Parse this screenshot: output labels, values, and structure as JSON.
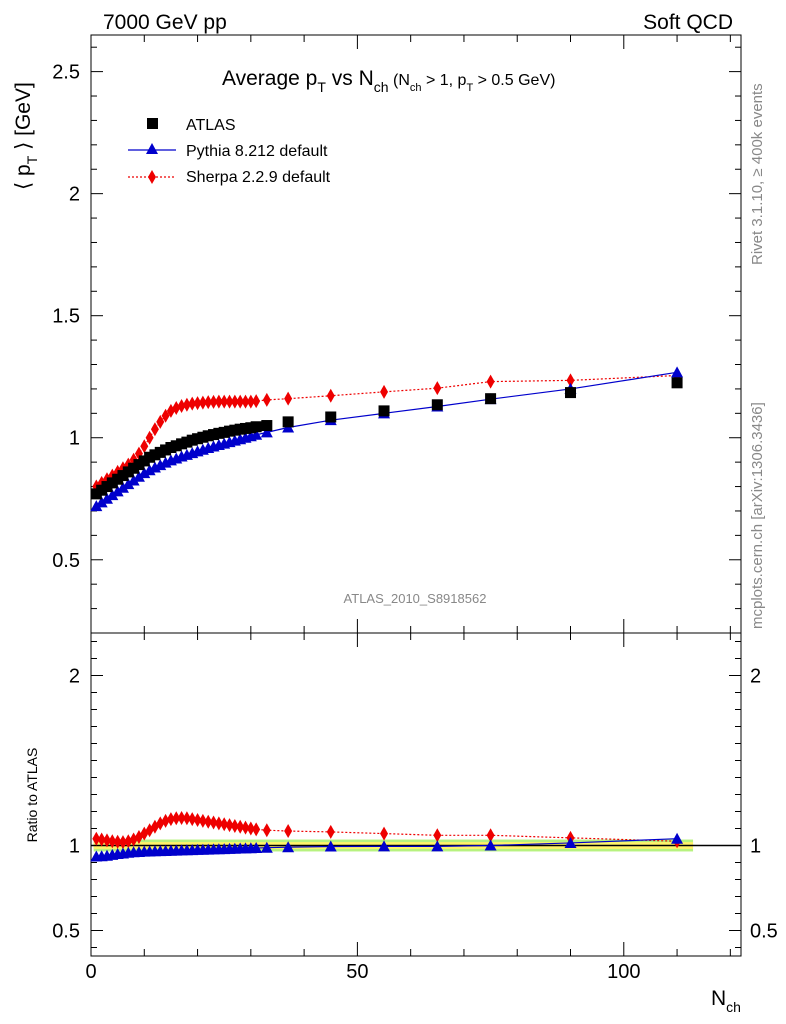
{
  "header": {
    "left": "7000 GeV pp",
    "right": "Soft QCD"
  },
  "side": {
    "rivet": "Rivet 3.1.10, ≥ 400k events",
    "mcplots": "mcplots.cern.ch [arXiv:1306.3436]"
  },
  "watermark": "ATLAS_2010_S8918562",
  "colors": {
    "atlas": "#000000",
    "pythia": "#0000cc",
    "sherpa": "#ee0000",
    "band_inner": "#fff36a",
    "band_outer": "#b7f27f"
  },
  "chart_data": [
    {
      "panel": "main",
      "type": "scatter",
      "title": "Average p_T vs N_ch (N_ch > 1, p_T > 0.5 GeV)",
      "title_parts": {
        "main": "Average p",
        "sub1": "T",
        "vs": " vs N",
        "sub2": "ch",
        "cond_open": " (N",
        "cond_sub1": "ch",
        "cond_mid": " > 1, p",
        "cond_sub2": "T",
        "cond_close": " > 0.5 GeV)"
      },
      "ylabel_parts": {
        "open": "⟨ p",
        "sub": "T",
        "close": " ⟩  [GeV]"
      },
      "xlim": [
        0,
        122
      ],
      "ylim": [
        0.2,
        2.65
      ],
      "yticks": [
        "0.5",
        "1",
        "1.5",
        "2",
        "2.5"
      ],
      "ytick_values": [
        0.5,
        1,
        1.5,
        2,
        2.5
      ],
      "legend_placement": "top-left",
      "series": [
        {
          "name": "ATLAS",
          "marker": "square",
          "x": [
            1,
            2,
            3,
            4,
            5,
            6,
            7,
            8,
            9,
            10,
            11,
            12,
            13,
            14,
            15,
            16,
            17,
            18,
            19,
            20,
            21,
            22,
            23,
            24,
            25,
            26,
            27,
            28,
            29,
            30,
            31,
            33,
            37,
            45,
            55,
            65,
            75,
            90,
            110
          ],
          "y": [
            0.77,
            0.785,
            0.8,
            0.815,
            0.83,
            0.845,
            0.86,
            0.875,
            0.89,
            0.905,
            0.92,
            0.93,
            0.94,
            0.95,
            0.96,
            0.967,
            0.975,
            0.982,
            0.99,
            0.996,
            1.002,
            1.008,
            1.013,
            1.018,
            1.022,
            1.027,
            1.031,
            1.035,
            1.038,
            1.041,
            1.045,
            1.05,
            1.065,
            1.085,
            1.11,
            1.135,
            1.16,
            1.185,
            1.225
          ]
        },
        {
          "name": "Pythia 8.212 default",
          "marker": "triangle",
          "line": "solid",
          "x": [
            1,
            2,
            3,
            4,
            5,
            6,
            7,
            8,
            9,
            10,
            11,
            12,
            13,
            14,
            15,
            16,
            17,
            18,
            19,
            20,
            21,
            22,
            23,
            24,
            25,
            26,
            27,
            28,
            29,
            30,
            31,
            33,
            37,
            45,
            55,
            65,
            75,
            90,
            110
          ],
          "y": [
            0.72,
            0.735,
            0.75,
            0.765,
            0.78,
            0.795,
            0.81,
            0.825,
            0.84,
            0.855,
            0.867,
            0.878,
            0.888,
            0.898,
            0.907,
            0.915,
            0.923,
            0.93,
            0.937,
            0.944,
            0.951,
            0.958,
            0.964,
            0.97,
            0.976,
            0.982,
            0.988,
            0.994,
            1.0,
            1.006,
            1.012,
            1.022,
            1.042,
            1.072,
            1.1,
            1.128,
            1.158,
            1.2,
            1.268
          ]
        },
        {
          "name": "Sherpa 2.2.9 default",
          "marker": "diamond",
          "line": "dotted",
          "x": [
            1,
            2,
            3,
            4,
            5,
            6,
            7,
            8,
            9,
            10,
            11,
            12,
            13,
            14,
            15,
            16,
            17,
            18,
            19,
            20,
            21,
            22,
            23,
            24,
            25,
            26,
            27,
            28,
            29,
            30,
            31,
            33,
            37,
            45,
            55,
            65,
            75,
            90,
            110
          ],
          "y": [
            0.8,
            0.815,
            0.83,
            0.845,
            0.86,
            0.875,
            0.89,
            0.91,
            0.935,
            0.965,
            1.0,
            1.035,
            1.065,
            1.09,
            1.11,
            1.122,
            1.13,
            1.135,
            1.14,
            1.142,
            1.144,
            1.146,
            1.147,
            1.148,
            1.148,
            1.148,
            1.148,
            1.148,
            1.148,
            1.148,
            1.15,
            1.155,
            1.16,
            1.172,
            1.188,
            1.203,
            1.23,
            1.235,
            1.255
          ]
        }
      ]
    },
    {
      "panel": "ratio",
      "type": "scatter",
      "ylabel": "Ratio to ATLAS",
      "xlabel_parts": {
        "main": "N",
        "sub": "ch"
      },
      "xlim": [
        0,
        122
      ],
      "ylim": [
        0.35,
        2.25
      ],
      "yticks": [
        "0.5",
        "1",
        "2"
      ],
      "ytick_values": [
        0.5,
        1,
        2
      ],
      "xticks": [
        "0",
        "50",
        "100"
      ],
      "xtick_values": [
        0,
        50,
        100
      ],
      "band": {
        "inner": 0.02,
        "outer": 0.035
      },
      "series": [
        {
          "name": "Pythia 8.212 default",
          "marker": "triangle",
          "line": "solid",
          "x": [
            1,
            2,
            3,
            4,
            5,
            6,
            7,
            8,
            9,
            10,
            11,
            12,
            13,
            14,
            15,
            16,
            17,
            18,
            19,
            20,
            21,
            22,
            23,
            24,
            25,
            26,
            27,
            28,
            29,
            30,
            31,
            33,
            37,
            45,
            55,
            65,
            75,
            90,
            110
          ],
          "y": [
            0.935,
            0.937,
            0.94,
            0.945,
            0.95,
            0.953,
            0.957,
            0.96,
            0.962,
            0.964,
            0.965,
            0.966,
            0.967,
            0.968,
            0.969,
            0.97,
            0.971,
            0.972,
            0.973,
            0.974,
            0.975,
            0.976,
            0.977,
            0.978,
            0.979,
            0.98,
            0.981,
            0.982,
            0.983,
            0.984,
            0.985,
            0.987,
            0.99,
            0.994,
            0.995,
            0.995,
            1.0,
            1.015,
            1.04
          ]
        },
        {
          "name": "Sherpa 2.2.9 default",
          "marker": "diamond",
          "line": "dotted",
          "x": [
            1,
            2,
            3,
            4,
            5,
            6,
            7,
            8,
            9,
            10,
            11,
            12,
            13,
            14,
            15,
            16,
            17,
            18,
            19,
            20,
            21,
            22,
            23,
            24,
            25,
            26,
            27,
            28,
            29,
            30,
            31,
            33,
            37,
            45,
            55,
            65,
            75,
            90,
            110
          ],
          "y": [
            1.04,
            1.035,
            1.03,
            1.025,
            1.022,
            1.02,
            1.025,
            1.035,
            1.05,
            1.07,
            1.09,
            1.11,
            1.13,
            1.145,
            1.155,
            1.16,
            1.162,
            1.16,
            1.155,
            1.15,
            1.145,
            1.14,
            1.135,
            1.13,
            1.125,
            1.12,
            1.115,
            1.11,
            1.105,
            1.1,
            1.095,
            1.09,
            1.085,
            1.08,
            1.07,
            1.06,
            1.06,
            1.045,
            1.025
          ]
        }
      ]
    }
  ]
}
